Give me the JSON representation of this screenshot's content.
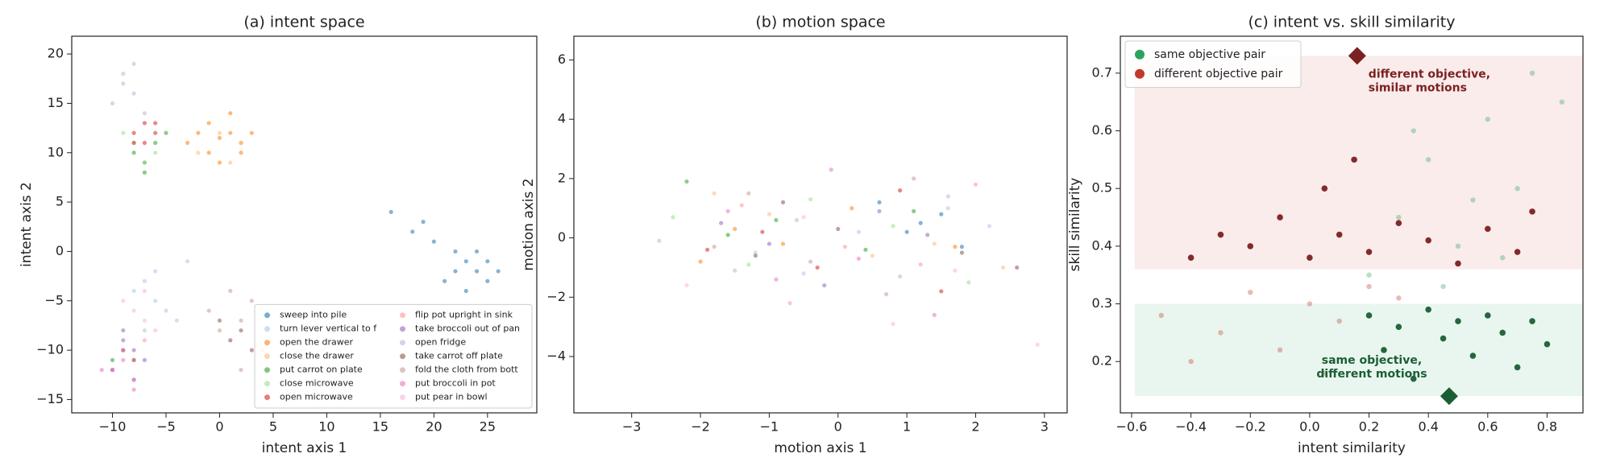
{
  "chart_data": [
    {
      "type": "scatter",
      "title": "(a) intent space",
      "x_label": "intent axis 1",
      "y_label": "intent axis 2",
      "xlim": [
        -13.8,
        29.6
      ],
      "ylim": [
        -16.35,
        21.8
      ],
      "xticks": [
        {
          "value": -10,
          "label": "−10"
        },
        {
          "value": -5,
          "label": "−5"
        },
        0,
        5,
        10,
        15,
        20,
        25
      ],
      "yticks": [
        {
          "value": -15,
          "label": "−15"
        },
        {
          "value": -10,
          "label": "−10"
        },
        {
          "value": -5,
          "label": "−5"
        },
        0,
        5,
        10,
        15,
        20
      ],
      "legend": "lower right",
      "legend_columns": 2,
      "series": [
        {
          "name": "sweep into pile",
          "color": "#1f77b4",
          "x": [
            18,
            20,
            22,
            23,
            24,
            25,
            26,
            21,
            19,
            24,
            23,
            16,
            22,
            25
          ],
          "y": [
            2,
            1,
            0,
            -1,
            -2,
            -1,
            -2,
            -3,
            3,
            0,
            -4,
            4,
            -2,
            -3
          ]
        },
        {
          "name": "turn lever vertical to f",
          "color": "#aec7e8",
          "x": [
            -7,
            -6,
            -5,
            -8,
            -6,
            -4,
            -7,
            -3
          ],
          "y": [
            -3,
            -5,
            -6,
            -4,
            -2,
            -7,
            -8,
            -1
          ]
        },
        {
          "name": "open the drawer",
          "color": "#ff7f0e",
          "x": [
            -3,
            -2,
            -1,
            0,
            1,
            2,
            3,
            -1,
            0,
            1,
            2
          ],
          "y": [
            11,
            12,
            10,
            11.5,
            12,
            11,
            12,
            13,
            9,
            14,
            10
          ]
        },
        {
          "name": "close the drawer",
          "color": "#ffbb78",
          "x": [
            -2,
            0,
            2,
            1,
            -1
          ],
          "y": [
            10,
            12,
            11,
            9,
            13
          ]
        },
        {
          "name": "put carrot on plate",
          "color": "#2ca02c",
          "x": [
            -8,
            -7,
            -6,
            -7,
            -5,
            -10
          ],
          "y": [
            10,
            9,
            11,
            8,
            12,
            -11
          ]
        },
        {
          "name": "close microwave",
          "color": "#98df8a",
          "x": [
            -8,
            -6,
            -7,
            -9
          ],
          "y": [
            11,
            10,
            9,
            12
          ]
        },
        {
          "name": "open microwave",
          "color": "#d62728",
          "x": [
            -8,
            -7,
            -6,
            -7,
            -8,
            -6
          ],
          "y": [
            12,
            13,
            12,
            11,
            11,
            13
          ]
        },
        {
          "name": "flip pot upright in sink",
          "color": "#ff9896",
          "x": [
            -9,
            -8,
            -7,
            -10
          ],
          "y": [
            -10,
            -11,
            -9,
            -12
          ]
        },
        {
          "name": "take broccoli out of pan",
          "color": "#9467bd",
          "x": [
            -9,
            -8,
            -7,
            -10,
            -9,
            -8
          ],
          "y": [
            -9,
            -10,
            -11,
            -12,
            -8,
            -13
          ]
        },
        {
          "name": "open fridge",
          "color": "#c5b0d5",
          "x": [
            -10,
            -9,
            -8,
            -9,
            -7,
            -8
          ],
          "y": [
            15,
            17,
            16,
            18,
            14,
            19
          ]
        },
        {
          "name": "take carrot off plate",
          "color": "#8c564b",
          "x": [
            -9,
            -8,
            0,
            1,
            2,
            3
          ],
          "y": [
            -10,
            -11,
            -7,
            -9,
            -8,
            -10
          ]
        },
        {
          "name": "fold the cloth from bott",
          "color": "#c49c94",
          "x": [
            -1,
            0,
            1,
            2,
            3,
            4,
            2,
            1
          ],
          "y": [
            -6,
            -8,
            -9,
            -7,
            -5,
            -10,
            -12,
            -4
          ]
        },
        {
          "name": "put broccoli in pot",
          "color": "#e377c2",
          "x": [
            -10,
            -9,
            -8,
            -9,
            -11,
            -8
          ],
          "y": [
            -12,
            -11,
            -13,
            -10,
            -12,
            -14
          ]
        },
        {
          "name": "put pear in bowl",
          "color": "#f7b6d2",
          "x": [
            -8,
            -7,
            -9,
            -6,
            -7
          ],
          "y": [
            -6,
            -7,
            -5,
            -8,
            -4
          ]
        }
      ]
    },
    {
      "type": "scatter",
      "title": "(b) motion space",
      "x_label": "motion axis 1",
      "y_label": "motion axis 2",
      "xlim": [
        -3.84,
        3.33
      ],
      "ylim": [
        -5.9,
        6.8
      ],
      "xticks": [
        {
          "value": -3,
          "label": "−3"
        },
        {
          "value": -2,
          "label": "−2"
        },
        {
          "value": -1,
          "label": "−1"
        },
        0,
        1,
        2,
        3
      ],
      "yticks": [
        {
          "value": -4,
          "label": "−4"
        },
        {
          "value": -2,
          "label": "−2"
        },
        0,
        2,
        4,
        6
      ],
      "series": [
        {
          "color": "#1f77b4",
          "x": [
            1.2,
            1.5,
            1.0,
            1.8,
            0.6
          ],
          "y": [
            0.5,
            0.8,
            0.2,
            -0.3,
            1.2
          ]
        },
        {
          "color": "#aec7e8",
          "x": [
            -1.2,
            0.3,
            1.6,
            -0.5,
            2.2
          ],
          "y": [
            -0.5,
            0.2,
            1.0,
            -1.2,
            0.4
          ]
        },
        {
          "color": "#ff7f0e",
          "x": [
            -1.5,
            -0.8,
            1.7,
            0.2,
            -2.0
          ],
          "y": [
            0.3,
            -0.2,
            -0.3,
            1.0,
            -0.8
          ]
        },
        {
          "color": "#ffbb78",
          "x": [
            -1.0,
            0.5,
            1.4,
            -1.8,
            2.4
          ],
          "y": [
            0.8,
            -0.6,
            -0.2,
            1.5,
            -1.0
          ]
        },
        {
          "color": "#2ca02c",
          "x": [
            -1.6,
            -0.9,
            0.4,
            -2.2,
            1.1
          ],
          "y": [
            0.1,
            0.6,
            -0.4,
            1.9,
            0.9
          ]
        },
        {
          "color": "#98df8a",
          "x": [
            -1.3,
            0.8,
            -0.4,
            1.9,
            -2.4
          ],
          "y": [
            -0.9,
            0.4,
            1.3,
            -1.5,
            0.7
          ]
        },
        {
          "color": "#d62728",
          "x": [
            -1.1,
            -0.3,
            0.9,
            -1.9,
            1.5
          ],
          "y": [
            0.2,
            -1.0,
            1.6,
            -0.4,
            -1.8
          ]
        },
        {
          "color": "#ff9896",
          "x": [
            -1.4,
            0.1,
            1.2,
            -0.7,
            2.0
          ],
          "y": [
            1.1,
            -0.3,
            -0.9,
            -2.2,
            1.8
          ]
        },
        {
          "color": "#9467bd",
          "x": [
            -1.0,
            -1.7,
            0.6,
            1.3,
            -0.2
          ],
          "y": [
            -0.2,
            0.5,
            0.9,
            0.1,
            -1.6
          ]
        },
        {
          "color": "#c5b0d5",
          "x": [
            -0.6,
            0.9,
            -1.5,
            1.6,
            -2.6
          ],
          "y": [
            0.6,
            -1.3,
            -1.1,
            1.4,
            -0.1
          ]
        },
        {
          "color": "#8c564b",
          "x": [
            -1.2,
            0.0,
            1.8,
            -0.8,
            2.6
          ],
          "y": [
            -0.6,
            0.3,
            -0.5,
            1.2,
            -1.0
          ]
        },
        {
          "color": "#c49c94",
          "x": [
            -1.8,
            -0.4,
            0.7,
            1.1,
            -1.3
          ],
          "y": [
            -0.3,
            -0.8,
            -1.9,
            2.0,
            1.5
          ]
        },
        {
          "color": "#e377c2",
          "x": [
            -0.9,
            -1.6,
            0.3,
            1.4,
            -0.1
          ],
          "y": [
            -1.4,
            0.9,
            -0.7,
            -2.6,
            2.3
          ]
        },
        {
          "color": "#f7b6d2",
          "x": [
            -2.2,
            -0.5,
            0.8,
            1.7,
            2.9
          ],
          "y": [
            -1.6,
            0.7,
            -2.9,
            -1.1,
            -3.6
          ]
        }
      ]
    },
    {
      "type": "scatter",
      "title": "(c) intent vs. skill similarity",
      "x_label": "intent similarity",
      "y_label": "skill similarity",
      "xlim": [
        -0.638,
        0.921
      ],
      "ylim": [
        0.111,
        0.764
      ],
      "xticks": [
        {
          "value": -0.6,
          "label": "−0.6"
        },
        {
          "value": -0.4,
          "label": "−0.4"
        },
        {
          "value": -0.2,
          "label": "−0.2"
        },
        {
          "value": 0,
          "label": "0.0"
        },
        0.2,
        0.4,
        0.6,
        0.8
      ],
      "yticks": [
        0.2,
        0.3,
        0.4,
        0.5,
        0.6,
        0.7
      ],
      "legend": "upper left",
      "legend_columns": 1,
      "series": [
        {
          "name": "same objective pair",
          "color": "#2ca25f",
          "highlight_color": "#1b5e35",
          "band": {
            "xlim": [
              -0.59,
              0.92
            ],
            "ylim": [
              0.14,
              0.3
            ],
            "color": "#e9f6ef"
          },
          "x": [
            0.2,
            0.25,
            0.3,
            0.35,
            0.4,
            0.45,
            0.5,
            0.55,
            0.6,
            0.65,
            0.7,
            0.75,
            0.8,
            0.2,
            0.3,
            0.4,
            0.5,
            0.6,
            0.7,
            0.75,
            0.45,
            0.55,
            0.85,
            0.35,
            0.65
          ],
          "y": [
            0.28,
            0.22,
            0.26,
            0.17,
            0.29,
            0.24,
            0.27,
            0.21,
            0.28,
            0.25,
            0.19,
            0.27,
            0.23,
            0.35,
            0.45,
            0.55,
            0.4,
            0.62,
            0.5,
            0.7,
            0.33,
            0.48,
            0.65,
            0.6,
            0.38
          ]
        },
        {
          "name": "different objective pair",
          "color": "#c0392b",
          "highlight_color": "#7b2121",
          "band": {
            "xlim": [
              -0.59,
              0.92
            ],
            "ylim": [
              0.36,
              0.73
            ],
            "color": "#faeceb"
          },
          "x": [
            -0.4,
            -0.3,
            -0.2,
            -0.1,
            0,
            0.05,
            0.1,
            0.15,
            0.2,
            0.3,
            0.4,
            0.5,
            0.6,
            0.7,
            0.75,
            -0.5,
            -0.3,
            -0.2,
            -0.1,
            0,
            0.05,
            0.1,
            0.2,
            0.3,
            -0.4
          ],
          "y": [
            0.38,
            0.42,
            0.4,
            0.45,
            0.38,
            0.5,
            0.42,
            0.55,
            0.39,
            0.44,
            0.41,
            0.37,
            0.43,
            0.39,
            0.46,
            0.28,
            0.25,
            0.32,
            0.22,
            0.3,
            0.18,
            0.27,
            0.33,
            0.31,
            0.2
          ]
        }
      ],
      "markers": [
        {
          "x": 0.16,
          "y": 0.73,
          "color": "#7b2121",
          "label": [
            "different objective,",
            "similar motions"
          ]
        },
        {
          "x": 0.47,
          "y": 0.14,
          "color": "#1b5e35",
          "label": [
            "same objective,",
            "different motions"
          ]
        }
      ]
    }
  ]
}
